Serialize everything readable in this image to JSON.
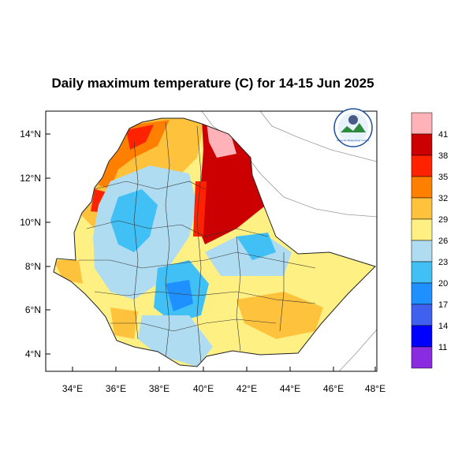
{
  "title": "Daily maximum temperature (C) for 14-15 Jun 2025",
  "axes": {
    "lat_ticks": [
      "4°N",
      "6°N",
      "8°N",
      "10°N",
      "12°N",
      "14°N"
    ],
    "lon_ticks": [
      "34°E",
      "36°E",
      "38°E",
      "40°E",
      "42°E",
      "44°E",
      "46°E",
      "48°E"
    ],
    "lat_range": [
      3.2,
      15.0
    ],
    "lon_range": [
      33.0,
      48.2
    ]
  },
  "legend": {
    "labels": [
      "41",
      "38",
      "35",
      "32",
      "29",
      "26",
      "23",
      "20",
      "17",
      "14",
      "11"
    ],
    "colors": [
      "#ffb3b8",
      "#cc0000",
      "#ff2200",
      "#ff8000",
      "#ffc23c",
      "#fff084",
      "#b0dcf2",
      "#40c0f5",
      "#1e90ff",
      "#4060f0",
      "#0000ff",
      "#8a2be2"
    ]
  },
  "logo": {
    "name": "Ethiopian Meteorology Institute",
    "text": "Ethiopian Meteorology Institute"
  },
  "chart_data": {
    "type": "heatmap",
    "title": "Daily maximum temperature (C) for 14-15 Jun 2025",
    "xlabel": "",
    "ylabel": "",
    "levels": [
      11,
      14,
      17,
      20,
      23,
      26,
      29,
      32,
      35,
      38,
      41
    ],
    "xlim": [
      33.0,
      48.2
    ],
    "ylim": [
      3.2,
      15.0
    ]
  }
}
